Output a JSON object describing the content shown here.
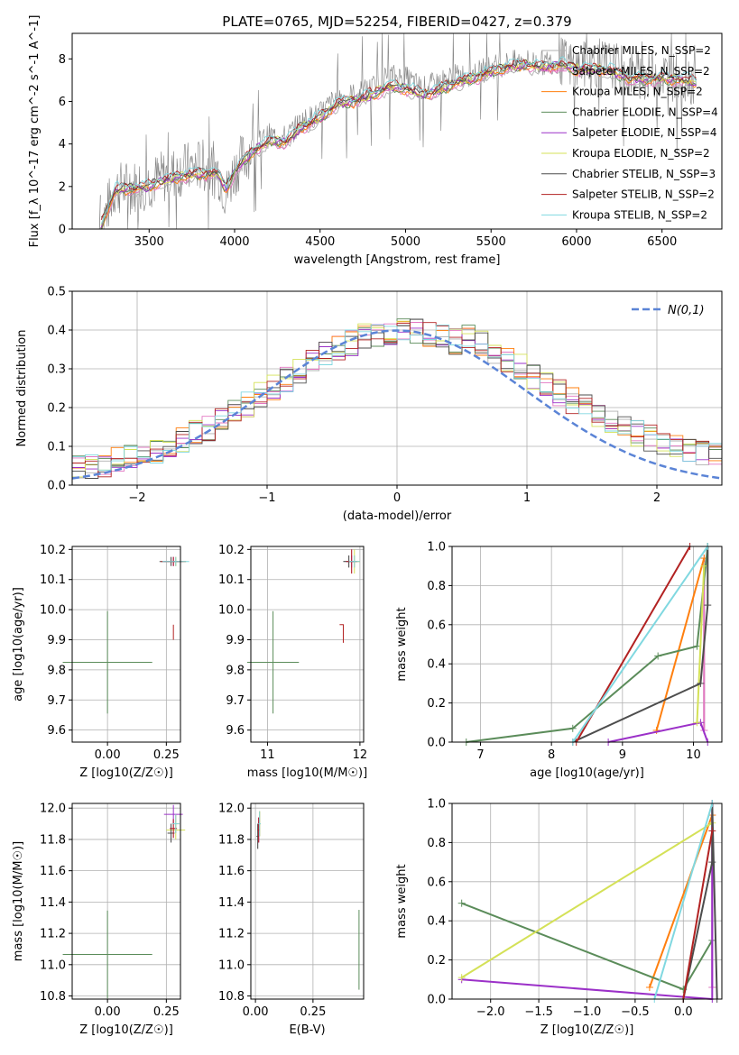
{
  "figure_title": "PLATE=0765, MJD=52254, FIBERID=0427, z=0.379",
  "colors": {
    "Chabrier MILES": "#b0b0b0",
    "Salpeter MILES": "#e377c2",
    "Kroupa MILES": "#ff7f0e",
    "Chabrier ELODIE": "#5b8c5a",
    "Salpeter ELODIE": "#9b30c8",
    "Kroupa ELODIE": "#d4e157",
    "Chabrier STELIB": "#4d4d4d",
    "Salpeter STELIB": "#b22222",
    "Kroupa STELIB": "#80d8e0",
    "data": "#808080",
    "normal": "#5b84d6"
  },
  "chart_data": [
    {
      "type": "line",
      "title": "PLATE=0765, MJD=52254, FIBERID=0427, z=0.379",
      "xlabel": "wavelength [Angstrom, rest frame]",
      "ylabel": "Flux [f_λ 10^-17 erg cm^-2 s^-1 A^-1]",
      "xlim": [
        3050,
        6850
      ],
      "ylim": [
        0,
        9.2
      ],
      "xticks": [
        3500,
        4000,
        4500,
        5000,
        5500,
        6000,
        6500
      ],
      "yticks": [
        0,
        2,
        4,
        6,
        8
      ],
      "x": [
        3210,
        3300,
        3400,
        3500,
        3600,
        3700,
        3800,
        3900,
        3950,
        4000,
        4100,
        4200,
        4300,
        4400,
        4500,
        4600,
        4700,
        4800,
        4900,
        5000,
        5100,
        5200,
        5300,
        5400,
        5500,
        5600,
        5700,
        5800,
        5900,
        6000,
        6100,
        6200,
        6300,
        6400,
        6500,
        6600,
        6700
      ],
      "data_series": [
        0.0,
        1.9,
        2.0,
        2.2,
        2.5,
        2.8,
        3.0,
        2.8,
        1.6,
        2.8,
        3.8,
        4.4,
        4.3,
        5.1,
        5.4,
        6.2,
        6.3,
        6.6,
        7.2,
        7.1,
        6.6,
        6.9,
        7.2,
        7.3,
        7.6,
        7.8,
        7.9,
        7.8,
        7.9,
        7.6,
        7.8,
        7.7,
        7.3,
        7.2,
        7.3,
        7.1,
        7.0
      ],
      "model_series": [
        0.0,
        1.8,
        1.9,
        2.0,
        2.3,
        2.5,
        2.6,
        2.6,
        1.9,
        2.7,
        3.6,
        4.1,
        4.1,
        4.8,
        5.2,
        5.9,
        6.0,
        6.3,
        6.7,
        6.6,
        6.3,
        6.5,
        6.9,
        7.1,
        7.4,
        7.6,
        7.7,
        7.6,
        7.7,
        7.5,
        7.5,
        7.4,
        7.1,
        7.0,
        7.1,
        7.0,
        6.9
      ],
      "legend": [
        "Chabrier MILES, N_SSP=2",
        "Salpeter MILES, N_SSP=2",
        "Kroupa MILES, N_SSP=2",
        "Chabrier ELODIE, N_SSP=4",
        "Salpeter ELODIE, N_SSP=4",
        "Kroupa ELODIE, N_SSP=2",
        "Chabrier STELIB, N_SSP=3",
        "Salpeter STELIB, N_SSP=2",
        "Kroupa STELIB, N_SSP=2"
      ],
      "legend_placement": "right"
    },
    {
      "type": "step",
      "xlabel": "(data-model)/error",
      "ylabel": "Normed distribution",
      "xlim": [
        -2.5,
        2.5
      ],
      "ylim": [
        0,
        0.5
      ],
      "xticks": [
        -2,
        -1,
        0,
        1,
        2
      ],
      "yticks": [
        0.0,
        0.1,
        0.2,
        0.3,
        0.4,
        0.5
      ],
      "grid": true,
      "legend": [
        "N(0,1)"
      ],
      "legend_placement": "top-right",
      "normal_curve": {
        "mean": 0,
        "sigma": 1
      }
    },
    {
      "type": "errorbar",
      "xlabel": "Z [log10(Z/Z☉)]",
      "ylabel": "age [log10(age/yr)]",
      "xlim": [
        -0.15,
        0.31
      ],
      "ylim": [
        9.56,
        10.21
      ],
      "xticks": [
        0.0,
        0.25
      ],
      "xticklabels": [
        "0.00",
        "0.25"
      ],
      "yticks": [
        9.6,
        9.7,
        9.8,
        9.9,
        10.0,
        10.1,
        10.2
      ],
      "grid": true
    },
    {
      "type": "errorbar",
      "xlabel": "mass [log10(M/M☉)]",
      "xlim": [
        10.82,
        12.04
      ],
      "ylim": [
        9.56,
        10.21
      ],
      "xticks": [
        11,
        12
      ],
      "yticks": [
        9.6,
        9.7,
        9.8,
        9.9,
        10.0,
        10.1,
        10.2
      ],
      "grid": true
    },
    {
      "type": "line",
      "xlabel": "age [log10(age/yr)]",
      "ylabel": "mass weight",
      "xlim": [
        6.6,
        10.4
      ],
      "ylim": [
        0,
        1.0
      ],
      "xticks": [
        7,
        8,
        9,
        10
      ],
      "yticks": [
        0.0,
        0.2,
        0.4,
        0.6,
        0.8,
        1.0
      ],
      "grid": true,
      "series": [
        {
          "name": "Chabrier MILES",
          "x": [
            10.15,
            10.15
          ],
          "y": [
            0.06,
            0.94
          ]
        },
        {
          "name": "Salpeter MILES",
          "x": [
            10.15,
            10.15
          ],
          "y": [
            0.06,
            0.94
          ]
        },
        {
          "name": "Kroupa MILES",
          "x": [
            9.48,
            10.15
          ],
          "y": [
            0.06,
            0.94
          ]
        },
        {
          "name": "Chabrier ELODIE",
          "x": [
            6.8,
            8.3,
            9.5,
            10.05,
            10.2
          ],
          "y": [
            0.0,
            0.07,
            0.44,
            0.49,
            1.0
          ]
        },
        {
          "name": "Salpeter ELODIE",
          "x": [
            8.8,
            10.1,
            10.2
          ],
          "y": [
            0.0,
            0.1,
            0.0
          ]
        },
        {
          "name": "Kroupa ELODIE",
          "x": [
            10.05,
            10.15
          ],
          "y": [
            0.1,
            0.9
          ]
        },
        {
          "name": "Chabrier STELIB",
          "x": [
            8.3,
            10.1,
            10.2,
            10.2
          ],
          "y": [
            0.0,
            0.3,
            0.7,
            1.0
          ]
        },
        {
          "name": "Salpeter STELIB",
          "x": [
            8.35,
            9.95
          ],
          "y": [
            0.0,
            1.0
          ]
        },
        {
          "name": "Kroupa STELIB",
          "x": [
            8.3,
            10.2
          ],
          "y": [
            0.0,
            1.0
          ]
        }
      ]
    },
    {
      "type": "errorbar",
      "xlabel": "Z [log10(Z/Z☉)]",
      "ylabel": "mass [log10(M/M☉)]",
      "xlim": [
        -0.15,
        0.31
      ],
      "ylim": [
        10.78,
        12.03
      ],
      "xticks": [
        0.0,
        0.25
      ],
      "xticklabels": [
        "0.00",
        "0.25"
      ],
      "yticks": [
        10.8,
        11.0,
        11.2,
        11.4,
        11.6,
        11.8,
        12.0
      ],
      "grid": true
    },
    {
      "type": "errorbar",
      "xlabel": "E(B-V)",
      "xlim": [
        -0.02,
        0.47
      ],
      "ylim": [
        10.78,
        12.03
      ],
      "xticks": [
        0.0,
        0.25
      ],
      "xticklabels": [
        "0.00",
        "0.25"
      ],
      "yticks": [
        10.8,
        11.0,
        11.2,
        11.4,
        11.6,
        11.8,
        12.0
      ],
      "grid": true
    },
    {
      "type": "line",
      "xlabel": "Z [log10(Z/Z☉)]",
      "ylabel": "mass weight",
      "xlim": [
        -2.4,
        0.4
      ],
      "ylim": [
        0,
        1.0
      ],
      "xticks": [
        -2.0,
        -1.5,
        -1.0,
        -0.5,
        0.0
      ],
      "yticks": [
        0.0,
        0.2,
        0.4,
        0.6,
        0.8,
        1.0
      ],
      "grid": true,
      "series": [
        {
          "name": "Chabrier MILES",
          "x": [
            0.3,
            0.3
          ],
          "y": [
            0.06,
            0.94
          ]
        },
        {
          "name": "Salpeter MILES",
          "x": [
            0.3,
            0.3
          ],
          "y": [
            0.06,
            0.94
          ]
        },
        {
          "name": "Kroupa MILES",
          "x": [
            -0.35,
            0.3
          ],
          "y": [
            0.06,
            0.94
          ]
        },
        {
          "name": "Chabrier ELODIE",
          "x": [
            -2.3,
            0.0,
            0.3
          ],
          "y": [
            0.49,
            0.05,
            0.3
          ]
        },
        {
          "name": "Salpeter ELODIE",
          "x": [
            -2.3,
            0.3,
            0.3
          ],
          "y": [
            0.1,
            0.0,
            1.0
          ]
        },
        {
          "name": "Kroupa ELODIE",
          "x": [
            -2.3,
            0.3
          ],
          "y": [
            0.11,
            0.9
          ]
        },
        {
          "name": "Chabrier STELIB",
          "x": [
            0.0,
            0.3,
            0.3,
            0.35
          ],
          "y": [
            0.0,
            0.7,
            1.0,
            0.0
          ]
        },
        {
          "name": "Salpeter STELIB",
          "x": [
            0.0,
            0.3
          ],
          "y": [
            0.0,
            0.86
          ]
        },
        {
          "name": "Kroupa STELIB",
          "x": [
            -0.3,
            0.3
          ],
          "y": [
            0.0,
            1.0
          ]
        }
      ]
    }
  ]
}
